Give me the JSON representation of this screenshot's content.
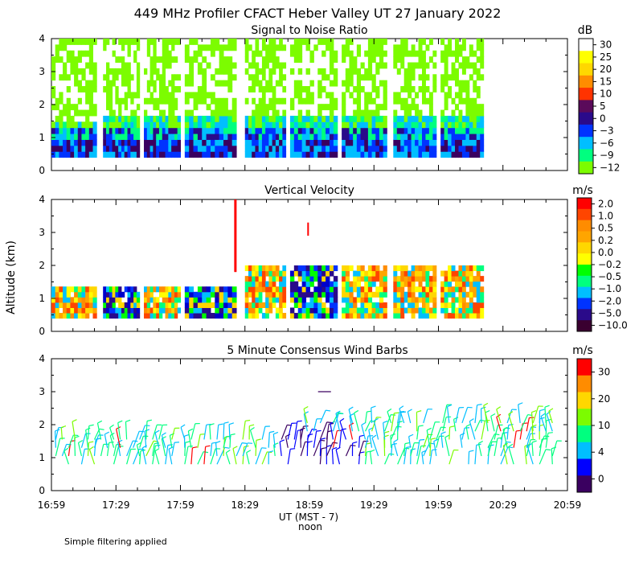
{
  "title": "449 MHz Profiler CFACT Heber Valley UT 27 January 2022",
  "ylabel": "Altitude (km)",
  "xlabel": "UT  (MST - 7)",
  "xlabel_sub": "noon",
  "footnote": "Simple filtering applied",
  "chart_data": [
    {
      "type": "heatmap",
      "title": "Signal to Noise Ratio",
      "unit": "dB",
      "x_ticks": [
        "16:59",
        "17:29",
        "17:59",
        "18:29",
        "18:59",
        "19:29",
        "19:59",
        "20:29",
        "20:59"
      ],
      "y_ticks": [
        "0",
        "1",
        "2",
        "3",
        "4"
      ],
      "ylim": [
        0,
        4
      ],
      "colorbar": {
        "labels": [
          "30",
          "25",
          "20",
          "15",
          "10",
          "5",
          "0",
          "−3",
          "−6",
          "−9",
          "−12"
        ],
        "colors": [
          "#ffffff",
          "#ffff00",
          "#ffd700",
          "#ff8c00",
          "#ff3300",
          "#5a0a5a",
          "#2a0a8a",
          "#0033ff",
          "#00bfff",
          "#00ff7f",
          "#7cfc00"
        ]
      },
      "blocks": [
        {
          "start": "16:59",
          "end": "17:20",
          "top": 4.0
        },
        {
          "start": "17:23",
          "end": "17:40",
          "top": 4.0
        },
        {
          "start": "17:42",
          "end": "17:59",
          "top": 4.0
        },
        {
          "start": "18:01",
          "end": "18:25",
          "top": 4.0
        },
        {
          "start": "18:29",
          "end": "18:48",
          "top": 4.0
        },
        {
          "start": "18:50",
          "end": "19:12",
          "top": 4.0
        },
        {
          "start": "19:14",
          "end": "19:35",
          "top": 4.0
        },
        {
          "start": "19:38",
          "end": "19:58",
          "top": 4.0
        },
        {
          "start": "20:00",
          "end": "20:20",
          "top": 4.0
        }
      ]
    },
    {
      "type": "heatmap",
      "title": "Vertical Velocity",
      "unit": "m/s",
      "x_ticks": [
        "16:59",
        "17:29",
        "17:59",
        "18:29",
        "18:59",
        "19:29",
        "19:59",
        "20:29",
        "20:59"
      ],
      "y_ticks": [
        "0",
        "1",
        "2",
        "3",
        "4"
      ],
      "ylim": [
        0,
        4
      ],
      "colorbar": {
        "labels": [
          "2.0",
          "1.0",
          "0.5",
          "0.2",
          "0.0",
          "−0.2",
          "−0.5",
          "−1.0",
          "−2.0",
          "−5.0",
          "−10.0"
        ],
        "colors": [
          "#ff0000",
          "#ff4500",
          "#ff8c00",
          "#ffa500",
          "#ffd700",
          "#ffff00",
          "#00ff00",
          "#00ff7f",
          "#00bfff",
          "#0033ff",
          "#2a0a8a",
          "#3a0030"
        ]
      }
    },
    {
      "type": "scatter",
      "title": "5 Minute Consensus Wind Barbs",
      "unit": "m/s",
      "x_ticks": [
        "16:59",
        "17:29",
        "17:59",
        "18:29",
        "18:59",
        "19:29",
        "19:59",
        "20:29",
        "20:59"
      ],
      "y_ticks": [
        "0",
        "1",
        "2",
        "3",
        "4"
      ],
      "ylim": [
        0,
        4
      ],
      "colorbar": {
        "labels": [
          "30",
          "20",
          "10",
          "4",
          "0"
        ],
        "colors": [
          "#ff0000",
          "#ff8c00",
          "#ffd700",
          "#7cfc00",
          "#00ff7f",
          "#00bfff",
          "#0000ff",
          "#3a0060"
        ]
      }
    }
  ]
}
